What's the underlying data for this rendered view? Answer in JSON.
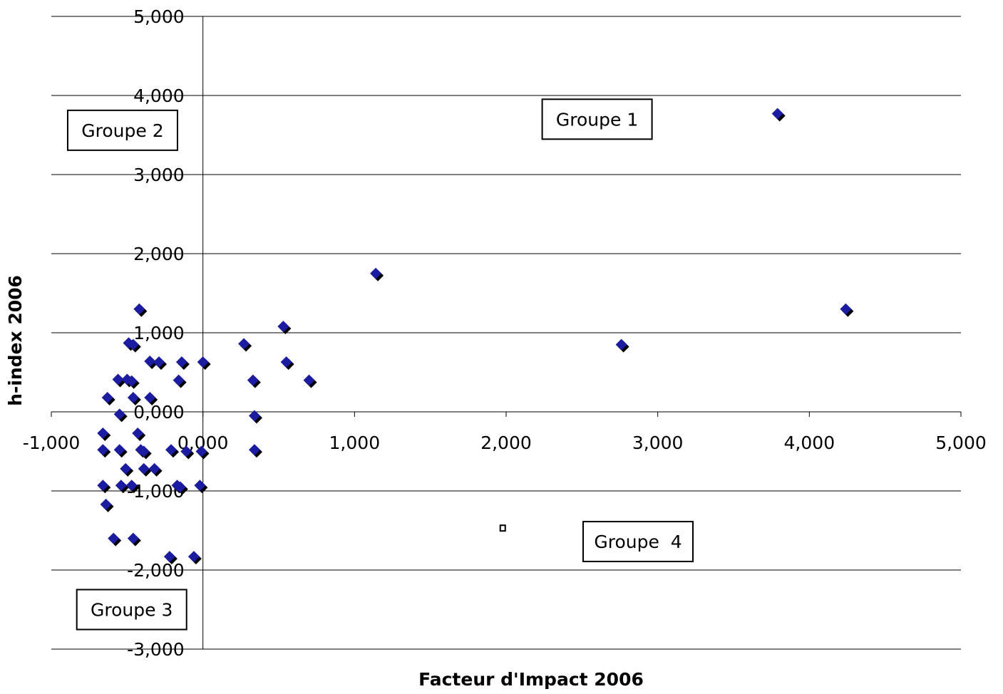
{
  "chart_data": {
    "type": "scatter",
    "xlabel": "Facteur d'Impact 2006",
    "ylabel": "h-index 2006",
    "xlim": [
      -1,
      5
    ],
    "ylim": [
      -3,
      5
    ],
    "x_ticks": [
      -1,
      0,
      1,
      2,
      3,
      4,
      5
    ],
    "x_tick_labels": [
      "-1,000",
      "0,000",
      "1,000",
      "2,000",
      "3,000",
      "4,000",
      "5,000"
    ],
    "y_ticks": [
      -3,
      -2,
      -1,
      0,
      1,
      2,
      3,
      4,
      5
    ],
    "y_tick_labels": [
      "-3,000",
      "-2,000",
      "-1,000",
      "0,000",
      "1,000",
      "2,000",
      "3,000",
      "4,000",
      "5,000"
    ],
    "grid": "horizontal",
    "marker_color": "#1c1ca0",
    "marker_shadow_color": "#000000",
    "points": [
      {
        "x": 3.79,
        "y": 3.77
      },
      {
        "x": 4.24,
        "y": 1.3
      },
      {
        "x": 1.14,
        "y": 1.75
      },
      {
        "x": 2.76,
        "y": 0.85
      },
      {
        "x": 0.53,
        "y": 1.08
      },
      {
        "x": 0.27,
        "y": 0.86
      },
      {
        "x": 0.55,
        "y": 0.63
      },
      {
        "x": 0.0,
        "y": 0.63
      },
      {
        "x": 0.7,
        "y": 0.4
      },
      {
        "x": 0.33,
        "y": 0.4
      },
      {
        "x": 0.34,
        "y": -0.05
      },
      {
        "x": 0.34,
        "y": -0.48
      },
      {
        "x": -0.42,
        "y": 1.3
      },
      {
        "x": -0.49,
        "y": 0.87
      },
      {
        "x": -0.46,
        "y": 0.85
      },
      {
        "x": -0.35,
        "y": 0.64
      },
      {
        "x": -0.29,
        "y": 0.63
      },
      {
        "x": -0.14,
        "y": 0.63
      },
      {
        "x": -0.16,
        "y": 0.4
      },
      {
        "x": -0.56,
        "y": 0.41
      },
      {
        "x": -0.5,
        "y": 0.41
      },
      {
        "x": -0.47,
        "y": 0.39
      },
      {
        "x": -0.63,
        "y": 0.18
      },
      {
        "x": -0.46,
        "y": 0.18
      },
      {
        "x": -0.35,
        "y": 0.18
      },
      {
        "x": -0.55,
        "y": -0.03
      },
      {
        "x": -0.66,
        "y": -0.27
      },
      {
        "x": -0.43,
        "y": -0.27
      },
      {
        "x": -0.66,
        "y": -0.48
      },
      {
        "x": -0.55,
        "y": -0.48
      },
      {
        "x": -0.41,
        "y": -0.48
      },
      {
        "x": -0.39,
        "y": -0.5
      },
      {
        "x": -0.21,
        "y": -0.48
      },
      {
        "x": -0.11,
        "y": -0.5
      },
      {
        "x": -0.01,
        "y": -0.5
      },
      {
        "x": -0.51,
        "y": -0.72
      },
      {
        "x": -0.39,
        "y": -0.72
      },
      {
        "x": -0.32,
        "y": -0.72
      },
      {
        "x": -0.66,
        "y": -0.93
      },
      {
        "x": -0.54,
        "y": -0.93
      },
      {
        "x": -0.47,
        "y": -0.93
      },
      {
        "x": -0.17,
        "y": -0.93
      },
      {
        "x": -0.15,
        "y": -0.95
      },
      {
        "x": -0.02,
        "y": -0.93
      },
      {
        "x": -0.64,
        "y": -1.17
      },
      {
        "x": -0.59,
        "y": -1.6
      },
      {
        "x": -0.46,
        "y": -1.6
      },
      {
        "x": -0.22,
        "y": -1.83
      },
      {
        "x": -0.06,
        "y": -1.83
      }
    ],
    "outlier_points": [
      {
        "x": 1.98,
        "y": -1.47
      }
    ],
    "annotations": [
      {
        "text": "Groupe 1",
        "x": 2.6,
        "y": 3.7
      },
      {
        "text": "Groupe 2",
        "x": -0.53,
        "y": 3.56
      },
      {
        "text": "Groupe 3",
        "x": -0.47,
        "y": -2.5
      },
      {
        "text": "Groupe  4",
        "x": 2.87,
        "y": -1.64
      }
    ]
  }
}
